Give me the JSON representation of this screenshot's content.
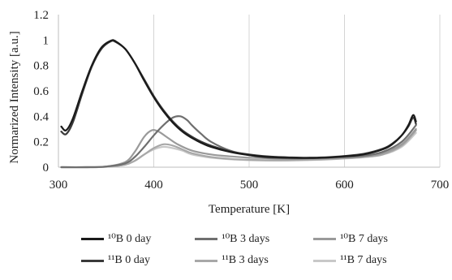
{
  "chart_data": {
    "type": "line",
    "title": "",
    "xlabel": "Temperature  [K]",
    "ylabel": "Normarized Intensity  [a.u.]",
    "xlim": [
      300,
      700
    ],
    "ylim": [
      0,
      1.2
    ],
    "xticks": [
      300,
      400,
      500,
      600,
      700
    ],
    "yticks": [
      0,
      0.2,
      0.4,
      0.6,
      0.8,
      1,
      1.2
    ],
    "xtick_labels": [
      "300",
      "400",
      "500",
      "600",
      "700"
    ],
    "ytick_labels": [
      "0",
      "0.2",
      "0.4",
      "0.6",
      "0.8",
      "1",
      "1.2"
    ],
    "grid": "vertical",
    "legend_position": "bottom",
    "series": [
      {
        "name": "¹⁰B 0 day",
        "color": "#1a1a1a",
        "x": [
          303,
          308,
          315,
          325,
          335,
          345,
          355,
          360,
          370,
          380,
          390,
          400,
          410,
          420,
          430,
          440,
          450,
          460,
          480,
          500,
          520,
          540,
          560,
          580,
          600,
          620,
          640,
          650,
          660,
          667,
          672,
          675
        ],
        "y": [
          0.32,
          0.29,
          0.38,
          0.6,
          0.8,
          0.94,
          0.995,
          0.99,
          0.93,
          0.82,
          0.68,
          0.55,
          0.44,
          0.35,
          0.28,
          0.23,
          0.19,
          0.16,
          0.12,
          0.095,
          0.08,
          0.075,
          0.072,
          0.075,
          0.085,
          0.1,
          0.14,
          0.18,
          0.25,
          0.33,
          0.41,
          0.36
        ]
      },
      {
        "name": "¹⁰B 3 days",
        "color": "#6f6f6f",
        "x": [
          303,
          330,
          350,
          370,
          380,
          390,
          400,
          410,
          420,
          428,
          435,
          440,
          450,
          460,
          480,
          500,
          520,
          540,
          560,
          580,
          600,
          620,
          640,
          660,
          675
        ],
        "y": [
          0,
          0,
          0.005,
          0.03,
          0.08,
          0.16,
          0.25,
          0.33,
          0.39,
          0.4,
          0.37,
          0.33,
          0.26,
          0.2,
          0.13,
          0.095,
          0.075,
          0.07,
          0.07,
          0.075,
          0.08,
          0.09,
          0.12,
          0.2,
          0.33
        ]
      },
      {
        "name": "¹⁰B 7 days",
        "color": "#9a9a9a",
        "x": [
          303,
          330,
          350,
          370,
          380,
          390,
          398,
          405,
          415,
          425,
          440,
          460,
          480,
          500,
          520,
          540,
          560,
          580,
          600,
          620,
          640,
          660,
          675
        ],
        "y": [
          0,
          0,
          0.005,
          0.04,
          0.12,
          0.24,
          0.29,
          0.28,
          0.23,
          0.18,
          0.13,
          0.1,
          0.085,
          0.075,
          0.07,
          0.065,
          0.065,
          0.07,
          0.075,
          0.085,
          0.11,
          0.18,
          0.3
        ]
      },
      {
        "name": "¹¹B 0 day",
        "color": "#3a3a3a",
        "x": [
          303,
          308,
          315,
          325,
          335,
          345,
          355,
          360,
          370,
          380,
          390,
          400,
          410,
          420,
          430,
          440,
          450,
          460,
          480,
          500,
          520,
          540,
          560,
          580,
          600,
          620,
          640,
          650,
          660,
          667,
          672,
          675
        ],
        "y": [
          0.28,
          0.26,
          0.35,
          0.58,
          0.79,
          0.93,
          0.99,
          0.985,
          0.93,
          0.82,
          0.69,
          0.56,
          0.45,
          0.36,
          0.29,
          0.24,
          0.2,
          0.17,
          0.125,
          0.1,
          0.085,
          0.078,
          0.075,
          0.078,
          0.088,
          0.105,
          0.145,
          0.185,
          0.25,
          0.32,
          0.39,
          0.34
        ]
      },
      {
        "name": "¹¹B 3 days",
        "color": "#a8a8a8",
        "x": [
          303,
          330,
          350,
          370,
          380,
          390,
          400,
          410,
          420,
          430,
          440,
          460,
          480,
          500,
          520,
          540,
          560,
          580,
          600,
          620,
          640,
          660,
          675
        ],
        "y": [
          0,
          0,
          0.003,
          0.02,
          0.05,
          0.1,
          0.15,
          0.18,
          0.17,
          0.14,
          0.11,
          0.08,
          0.065,
          0.058,
          0.055,
          0.055,
          0.058,
          0.062,
          0.07,
          0.08,
          0.1,
          0.17,
          0.29
        ]
      },
      {
        "name": "¹¹B 7 days",
        "color": "#c8c8c8",
        "x": [
          303,
          330,
          350,
          370,
          380,
          390,
          400,
          410,
          420,
          430,
          440,
          460,
          480,
          500,
          520,
          540,
          560,
          580,
          600,
          620,
          640,
          660,
          675
        ],
        "y": [
          0,
          0,
          0.003,
          0.02,
          0.05,
          0.1,
          0.14,
          0.16,
          0.15,
          0.13,
          0.1,
          0.075,
          0.062,
          0.055,
          0.052,
          0.052,
          0.055,
          0.06,
          0.068,
          0.078,
          0.098,
          0.16,
          0.27
        ]
      }
    ]
  }
}
